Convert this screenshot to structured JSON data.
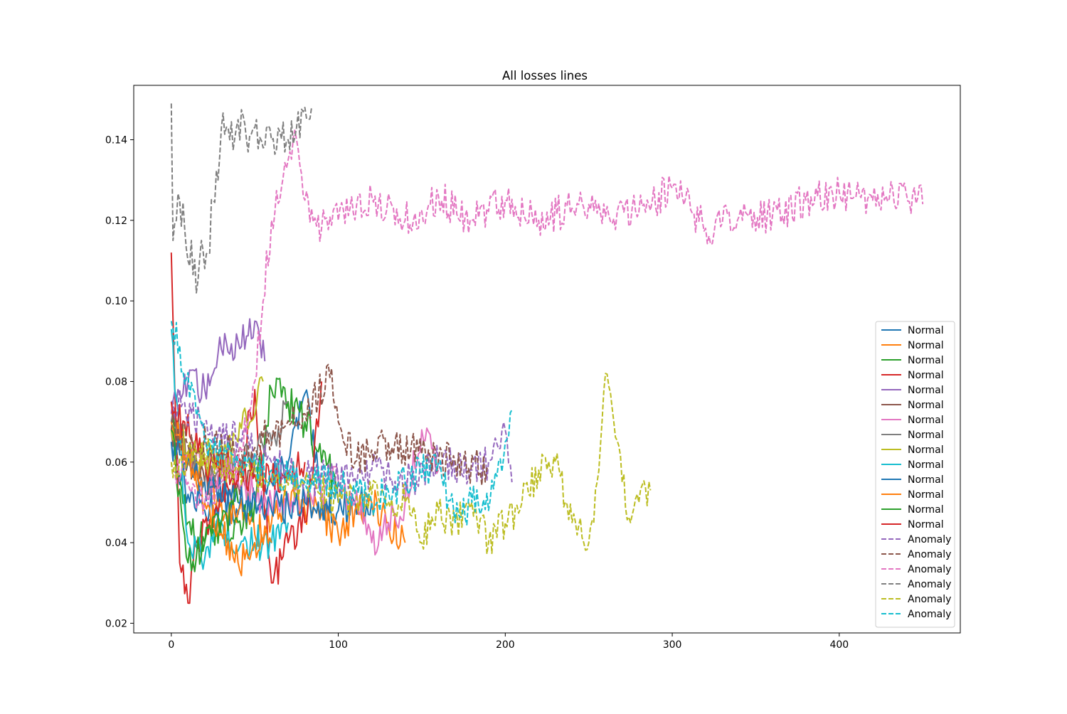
{
  "chart_data": {
    "type": "line",
    "title": "All losses lines",
    "xlabel": "",
    "ylabel": "",
    "xlim": [
      -22.5,
      472.5
    ],
    "ylim": [
      0.0176,
      0.1535
    ],
    "xticks": [
      0,
      100,
      200,
      300,
      400
    ],
    "yticks": [
      0.02,
      0.04,
      0.06,
      0.08,
      0.1,
      0.12,
      0.14
    ],
    "ytick_labels": [
      "0.02",
      "0.04",
      "0.06",
      "0.08",
      "0.10",
      "0.12",
      "0.14"
    ],
    "grid": false,
    "legend_position": "lower right",
    "series": [
      {
        "name": "Normal",
        "style": "solid",
        "color": "#1f77b4",
        "x": [
          0,
          10,
          20,
          30,
          40,
          50,
          60,
          70,
          80,
          90,
          100,
          110,
          120
        ],
        "y": [
          0.065,
          0.052,
          0.048,
          0.05,
          0.047,
          0.05,
          0.055,
          0.06,
          0.077,
          0.05,
          0.048,
          0.05,
          0.05
        ]
      },
      {
        "name": "Normal",
        "style": "solid",
        "color": "#ff7f0e",
        "x": [
          0,
          10,
          20,
          30,
          40,
          50,
          60,
          70,
          80,
          90,
          100,
          110,
          120,
          130,
          140
        ],
        "y": [
          0.072,
          0.06,
          0.055,
          0.05,
          0.048,
          0.042,
          0.045,
          0.05,
          0.048,
          0.047,
          0.042,
          0.048,
          0.05,
          0.045,
          0.04
        ]
      },
      {
        "name": "Normal",
        "style": "solid",
        "color": "#2ca02c",
        "x": [
          0,
          10,
          20,
          30,
          40,
          50,
          60,
          70,
          80,
          90,
          100
        ],
        "y": [
          0.07,
          0.045,
          0.04,
          0.042,
          0.045,
          0.05,
          0.078,
          0.075,
          0.07,
          0.06,
          0.055
        ]
      },
      {
        "name": "Normal",
        "style": "solid",
        "color": "#d62728",
        "x": [
          0,
          5,
          10,
          15,
          20,
          30,
          40,
          50,
          60,
          70,
          80,
          90
        ],
        "y": [
          0.112,
          0.035,
          0.025,
          0.04,
          0.045,
          0.05,
          0.055,
          0.078,
          0.03,
          0.04,
          0.045,
          0.08
        ]
      },
      {
        "name": "Normal",
        "style": "solid",
        "color": "#9467bd",
        "x": [
          0,
          10,
          20,
          30,
          40,
          50,
          56
        ],
        "y": [
          0.072,
          0.08,
          0.078,
          0.088,
          0.09,
          0.095,
          0.085
        ]
      },
      {
        "name": "Normal",
        "style": "solid",
        "color": "#8c564b",
        "x": [
          0,
          10,
          20,
          30,
          40,
          50
        ],
        "y": [
          0.068,
          0.06,
          0.055,
          0.058,
          0.055,
          0.06
        ]
      },
      {
        "name": "Normal",
        "style": "solid",
        "color": "#e377c2",
        "x": [
          0,
          20,
          40,
          60,
          80,
          100,
          110,
          120,
          130,
          140,
          150,
          160
        ],
        "y": [
          0.068,
          0.06,
          0.055,
          0.05,
          0.052,
          0.055,
          0.05,
          0.04,
          0.045,
          0.05,
          0.068,
          0.058
        ]
      },
      {
        "name": "Normal",
        "style": "solid",
        "color": "#7f7f7f",
        "x": [
          0,
          20,
          40,
          60,
          70
        ],
        "y": [
          0.07,
          0.055,
          0.06,
          0.065,
          0.075
        ]
      },
      {
        "name": "Normal",
        "style": "solid",
        "color": "#bcbd22",
        "x": [
          0,
          20,
          40,
          55
        ],
        "y": [
          0.068,
          0.06,
          0.065,
          0.08
        ]
      },
      {
        "name": "Normal",
        "style": "solid",
        "color": "#17becf",
        "x": [
          0,
          10,
          20,
          30,
          40,
          50,
          60,
          70
        ],
        "y": [
          0.093,
          0.04,
          0.036,
          0.045,
          0.038,
          0.04,
          0.04,
          0.045
        ]
      },
      {
        "name": "Normal",
        "style": "solid",
        "color": "#1f77b4",
        "x": [
          0,
          20,
          40,
          60,
          80,
          100
        ],
        "y": [
          0.065,
          0.055,
          0.05,
          0.048,
          0.05,
          0.05
        ]
      },
      {
        "name": "Normal",
        "style": "solid",
        "color": "#ff7f0e",
        "x": [
          0,
          20,
          40,
          60
        ],
        "y": [
          0.07,
          0.05,
          0.035,
          0.04
        ]
      },
      {
        "name": "Normal",
        "style": "solid",
        "color": "#2ca02c",
        "x": [
          0,
          10,
          20,
          30,
          40
        ],
        "y": [
          0.068,
          0.035,
          0.04,
          0.045,
          0.05
        ]
      },
      {
        "name": "Normal",
        "style": "solid",
        "color": "#d62728",
        "x": [
          0,
          20,
          40,
          60,
          80
        ],
        "y": [
          0.075,
          0.06,
          0.058,
          0.055,
          0.06
        ]
      },
      {
        "name": "Anomaly",
        "style": "dashed",
        "color": "#9467bd",
        "x": [
          0,
          20,
          40,
          60,
          80,
          100,
          120,
          140,
          160,
          180,
          190,
          200,
          204
        ],
        "y": [
          0.075,
          0.07,
          0.065,
          0.06,
          0.056,
          0.056,
          0.058,
          0.055,
          0.06,
          0.058,
          0.06,
          0.068,
          0.055
        ]
      },
      {
        "name": "Anomaly",
        "style": "dashed",
        "color": "#8c564b",
        "x": [
          0,
          40,
          80,
          95,
          100,
          110,
          120,
          130,
          150,
          170,
          190
        ],
        "y": [
          0.068,
          0.062,
          0.072,
          0.081,
          0.07,
          0.06,
          0.063,
          0.065,
          0.062,
          0.06,
          0.058
        ]
      },
      {
        "name": "Anomaly",
        "style": "dashed",
        "color": "#e377c2",
        "x": [
          0,
          10,
          20,
          30,
          40,
          50,
          55,
          60,
          65,
          70,
          75,
          80,
          90,
          100,
          120,
          140,
          160,
          180,
          200,
          220,
          240,
          260,
          280,
          300,
          320,
          340,
          360,
          380,
          400,
          420,
          440,
          450
        ],
        "y": [
          0.06,
          0.055,
          0.05,
          0.055,
          0.06,
          0.08,
          0.1,
          0.12,
          0.125,
          0.135,
          0.14,
          0.125,
          0.118,
          0.12,
          0.126,
          0.12,
          0.126,
          0.12,
          0.125,
          0.12,
          0.123,
          0.121,
          0.122,
          0.128,
          0.118,
          0.121,
          0.121,
          0.125,
          0.127,
          0.125,
          0.127,
          0.124
        ]
      },
      {
        "name": "Anomaly",
        "style": "dashed",
        "color": "#7f7f7f",
        "x": [
          0,
          1,
          3,
          5,
          8,
          10,
          12,
          15,
          18,
          20,
          22,
          25,
          28,
          30,
          35,
          40,
          45,
          50,
          55,
          60,
          65,
          70,
          75,
          80,
          84
        ],
        "y": [
          0.149,
          0.115,
          0.12,
          0.125,
          0.118,
          0.11,
          0.115,
          0.102,
          0.115,
          0.108,
          0.112,
          0.125,
          0.13,
          0.143,
          0.14,
          0.145,
          0.14,
          0.143,
          0.138,
          0.14,
          0.142,
          0.14,
          0.143,
          0.148,
          0.148
        ]
      },
      {
        "name": "Anomaly",
        "style": "dashed",
        "color": "#bcbd22",
        "x": [
          0,
          20,
          40,
          60,
          80,
          100,
          120,
          140,
          150,
          160,
          170,
          180,
          190,
          200,
          210,
          220,
          230,
          240,
          250,
          255,
          260,
          265,
          270,
          275,
          280,
          287
        ],
        "y": [
          0.06,
          0.062,
          0.058,
          0.055,
          0.055,
          0.05,
          0.052,
          0.05,
          0.04,
          0.048,
          0.045,
          0.05,
          0.04,
          0.045,
          0.05,
          0.058,
          0.06,
          0.045,
          0.04,
          0.055,
          0.082,
          0.07,
          0.055,
          0.045,
          0.05,
          0.053
        ]
      },
      {
        "name": "Anomaly",
        "style": "dashed",
        "color": "#17becf",
        "x": [
          0,
          20,
          40,
          60,
          80,
          100,
          120,
          140,
          160,
          170,
          180,
          190,
          200,
          204
        ],
        "y": [
          0.095,
          0.065,
          0.06,
          0.058,
          0.055,
          0.055,
          0.05,
          0.055,
          0.06,
          0.045,
          0.05,
          0.048,
          0.065,
          0.073
        ]
      }
    ]
  }
}
